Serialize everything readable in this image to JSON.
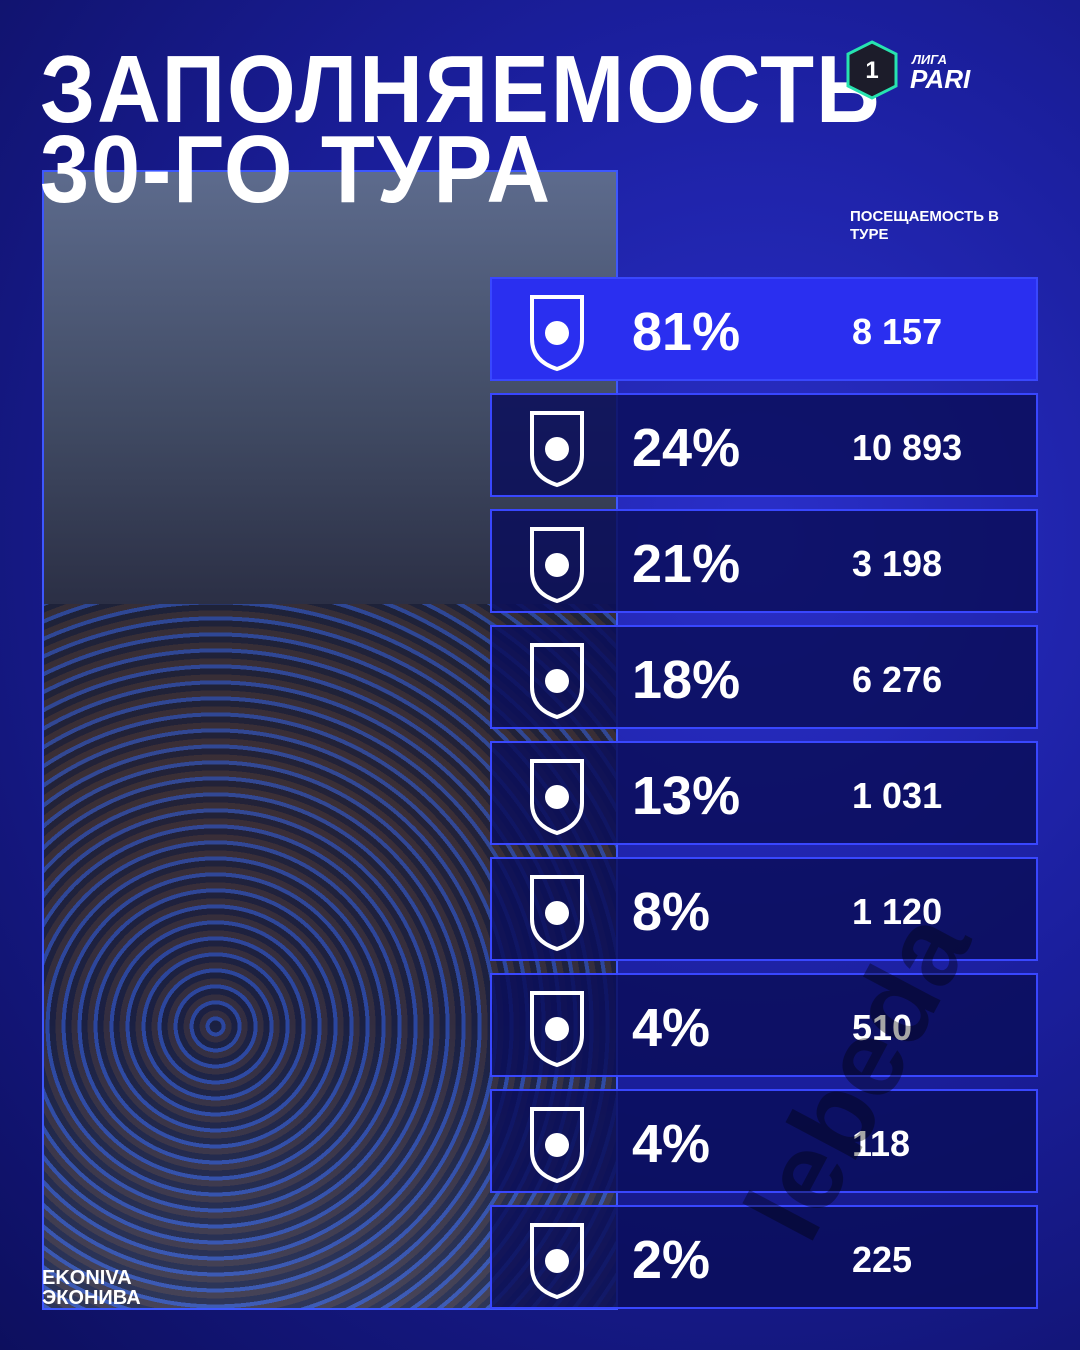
{
  "header": {
    "title_line1": "ЗАПОЛНЯЕМОСТЬ",
    "title_line2": "30-ГО ТУРА",
    "logo_number": "1",
    "logo_top": "ЛИГА",
    "logo_bottom": "PARI"
  },
  "table": {
    "column_header": "ПОСЕЩАЕМОСТЬ В ТУРЕ",
    "rows": [
      [
        "81%",
        "8 157"
      ],
      [
        "24%",
        "10 893"
      ],
      [
        "21%",
        "3 198"
      ],
      [
        "18%",
        "6 276"
      ],
      [
        "13%",
        "1 031"
      ],
      [
        "8%",
        "1 120"
      ],
      [
        "4%",
        "510"
      ],
      [
        "4%",
        "118"
      ],
      [
        "2%",
        "225"
      ]
    ]
  },
  "footer": {
    "sponsor_latin": "EKONIVA",
    "sponsor_cyrillic": "ЭКОНИВА"
  },
  "watermark": "lebeda"
}
